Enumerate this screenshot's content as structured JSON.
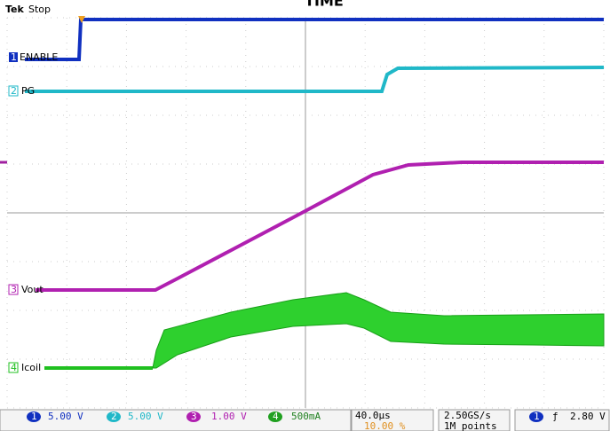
{
  "header": {
    "title": "TIME",
    "brand": "Tek",
    "status": "Stop"
  },
  "channels": [
    {
      "number": "1",
      "label": "ENABLE",
      "scale": "5.00 V"
    },
    {
      "number": "2",
      "label": "PG",
      "scale": "5.00 V"
    },
    {
      "number": "3",
      "label": "Vout",
      "scale": "1.00 V"
    },
    {
      "number": "4",
      "label": "Icoil",
      "scale": "500mA"
    }
  ],
  "timebase": {
    "scale": "40.0µs",
    "position": "10.00 %"
  },
  "acquisition": {
    "rate": "2.50GS/s",
    "length": "1M points"
  },
  "trigger": {
    "source": "1",
    "level": "2.80 V"
  }
}
